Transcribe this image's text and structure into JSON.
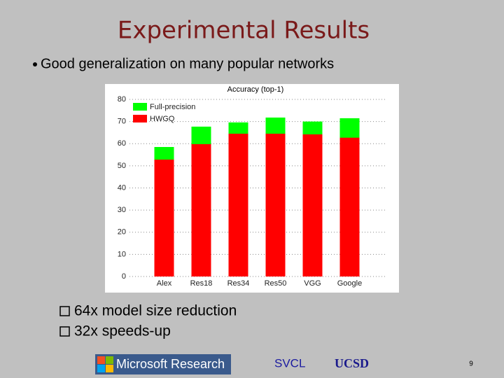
{
  "slide": {
    "title": "Experimental Results",
    "bullet": "Good generalization on many popular networks",
    "points": [
      "64x model size reduction",
      "32x speeds-up"
    ],
    "footer": {
      "logo": "Microsoft Research",
      "lab": "SVCL",
      "school": "UCSD",
      "page": "9"
    }
  },
  "chart_data": {
    "type": "bar",
    "title": "Accuracy (top-1)",
    "categories": [
      "Alex",
      "Res18",
      "Res34",
      "Res50",
      "VGG",
      "Google"
    ],
    "series": [
      {
        "name": "Full-precision",
        "color": "#00ff00",
        "values": [
          58.5,
          67.7,
          69.6,
          71.8,
          70.0,
          71.5
        ]
      },
      {
        "name": "HWGQ",
        "color": "#ff0000",
        "values": [
          52.8,
          59.8,
          64.5,
          64.5,
          64.2,
          62.7
        ]
      }
    ],
    "ylim": [
      0,
      80
    ],
    "yticks": [
      0,
      10,
      20,
      30,
      40,
      50,
      60,
      70,
      80
    ],
    "grid": true,
    "legend": "top-left"
  }
}
